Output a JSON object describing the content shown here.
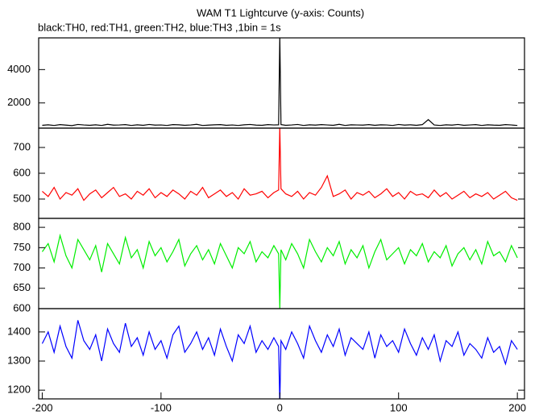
{
  "chart_data": [
    {
      "type": "line",
      "title": "WAM T1 Lightcurve (y-axis: Counts)",
      "subtitle": "black:TH0, red:TH1, green:TH2, blue:TH3 ,1bin = 1s",
      "x": [
        -200,
        -195,
        -190,
        -185,
        -180,
        -175,
        -170,
        -165,
        -160,
        -155,
        -150,
        -145,
        -140,
        -135,
        -130,
        -125,
        -120,
        -115,
        -110,
        -105,
        -100,
        -95,
        -90,
        -85,
        -80,
        -75,
        -70,
        -65,
        -60,
        -55,
        -50,
        -45,
        -40,
        -35,
        -30,
        -25,
        -20,
        -15,
        -10,
        -5,
        -1,
        0,
        1,
        5,
        10,
        15,
        20,
        25,
        30,
        35,
        40,
        45,
        50,
        55,
        60,
        65,
        70,
        75,
        80,
        85,
        90,
        95,
        100,
        105,
        110,
        115,
        120,
        125,
        130,
        135,
        140,
        145,
        150,
        155,
        160,
        165,
        170,
        175,
        180,
        185,
        190,
        195,
        200
      ],
      "series": [
        {
          "color": "#000000",
          "values": [
            660,
            690,
            650,
            700,
            670,
            640,
            710,
            680,
            660,
            690,
            650,
            720,
            670,
            680,
            700,
            650,
            690,
            660,
            710,
            670,
            680,
            650,
            700,
            690,
            660,
            680,
            720,
            650,
            670,
            690,
            700,
            660,
            680,
            650,
            690,
            710,
            670,
            660,
            700,
            680,
            690,
            6000,
            700,
            660,
            680,
            710,
            650,
            690,
            670,
            700,
            680,
            660,
            720,
            650,
            690,
            680,
            670,
            700,
            660,
            690,
            680,
            650,
            710,
            670,
            690,
            660,
            700,
            1000,
            680,
            650,
            690,
            670,
            710,
            660,
            680,
            700,
            650,
            690,
            670,
            660,
            700,
            680,
            650
          ]
        }
      ],
      "xlim": [
        -203,
        206
      ],
      "ylim": [
        490,
        5900
      ],
      "yticks": [
        2000,
        4000
      ]
    },
    {
      "type": "line",
      "x": [
        -200,
        -195,
        -190,
        -185,
        -180,
        -175,
        -170,
        -165,
        -160,
        -155,
        -150,
        -145,
        -140,
        -135,
        -130,
        -125,
        -120,
        -115,
        -110,
        -105,
        -100,
        -95,
        -90,
        -85,
        -80,
        -75,
        -70,
        -65,
        -60,
        -55,
        -50,
        -45,
        -40,
        -35,
        -30,
        -25,
        -20,
        -15,
        -10,
        -5,
        -1,
        0,
        1,
        5,
        10,
        15,
        20,
        25,
        30,
        35,
        40,
        45,
        50,
        55,
        60,
        65,
        70,
        75,
        80,
        85,
        90,
        95,
        100,
        105,
        110,
        115,
        120,
        125,
        130,
        135,
        140,
        145,
        150,
        155,
        160,
        165,
        170,
        175,
        180,
        185,
        190,
        195,
        200
      ],
      "series": [
        {
          "color": "#ff0000",
          "values": [
            530,
            510,
            545,
            500,
            525,
            515,
            540,
            495,
            520,
            535,
            505,
            525,
            545,
            510,
            520,
            500,
            530,
            515,
            540,
            505,
            525,
            510,
            535,
            520,
            500,
            530,
            515,
            545,
            505,
            520,
            535,
            510,
            525,
            500,
            540,
            515,
            520,
            530,
            505,
            525,
            535,
            780,
            540,
            520,
            510,
            530,
            500,
            525,
            515,
            545,
            590,
            510,
            520,
            535,
            500,
            525,
            515,
            530,
            505,
            520,
            540,
            510,
            525,
            500,
            530,
            515,
            520,
            505,
            535,
            510,
            525,
            500,
            515,
            530,
            505,
            520,
            510,
            525,
            500,
            515,
            530,
            505,
            495
          ]
        }
      ],
      "xlim": [
        -203,
        206
      ],
      "ylim": [
        425,
        775
      ],
      "yticks": [
        500,
        600,
        700
      ]
    },
    {
      "type": "line",
      "x": [
        -200,
        -195,
        -190,
        -185,
        -180,
        -175,
        -170,
        -165,
        -160,
        -155,
        -150,
        -145,
        -140,
        -135,
        -130,
        -125,
        -120,
        -115,
        -110,
        -105,
        -100,
        -95,
        -90,
        -85,
        -80,
        -75,
        -70,
        -65,
        -60,
        -55,
        -50,
        -45,
        -40,
        -35,
        -30,
        -25,
        -20,
        -15,
        -10,
        -5,
        -1,
        0,
        1,
        5,
        10,
        15,
        20,
        25,
        30,
        35,
        40,
        45,
        50,
        55,
        60,
        65,
        70,
        75,
        80,
        85,
        90,
        95,
        100,
        105,
        110,
        115,
        120,
        125,
        130,
        135,
        140,
        145,
        150,
        155,
        160,
        165,
        170,
        175,
        180,
        185,
        190,
        195,
        200
      ],
      "series": [
        {
          "color": "#00ee00",
          "values": [
            740,
            760,
            715,
            780,
            730,
            700,
            770,
            745,
            720,
            755,
            690,
            760,
            735,
            710,
            775,
            725,
            745,
            700,
            765,
            730,
            750,
            715,
            740,
            770,
            705,
            735,
            755,
            720,
            745,
            710,
            760,
            730,
            700,
            750,
            735,
            765,
            715,
            740,
            725,
            755,
            735,
            600,
            745,
            720,
            760,
            735,
            700,
            770,
            740,
            715,
            750,
            730,
            765,
            710,
            745,
            725,
            755,
            700,
            740,
            770,
            720,
            735,
            750,
            710,
            745,
            730,
            760,
            715,
            740,
            725,
            755,
            705,
            735,
            750,
            720,
            745,
            710,
            765,
            730,
            740,
            715,
            755,
            725
          ]
        }
      ],
      "xlim": [
        -203,
        206
      ],
      "ylim": [
        600,
        822
      ],
      "yticks": [
        600,
        650,
        700,
        750,
        800
      ]
    },
    {
      "type": "line",
      "x": [
        -200,
        -195,
        -190,
        -185,
        -180,
        -175,
        -170,
        -165,
        -160,
        -155,
        -150,
        -145,
        -140,
        -135,
        -130,
        -125,
        -120,
        -115,
        -110,
        -105,
        -100,
        -95,
        -90,
        -85,
        -80,
        -75,
        -70,
        -65,
        -60,
        -55,
        -50,
        -45,
        -40,
        -35,
        -30,
        -25,
        -20,
        -15,
        -10,
        -5,
        -1,
        0,
        1,
        5,
        10,
        15,
        20,
        25,
        30,
        35,
        40,
        45,
        50,
        55,
        60,
        65,
        70,
        75,
        80,
        85,
        90,
        95,
        100,
        105,
        110,
        115,
        120,
        125,
        130,
        135,
        140,
        145,
        150,
        155,
        160,
        165,
        170,
        175,
        180,
        185,
        190,
        195,
        200
      ],
      "series": [
        {
          "color": "#0000ff",
          "values": [
            1360,
            1400,
            1330,
            1420,
            1350,
            1310,
            1440,
            1370,
            1340,
            1390,
            1300,
            1410,
            1360,
            1330,
            1430,
            1350,
            1380,
            1320,
            1400,
            1340,
            1370,
            1310,
            1390,
            1420,
            1330,
            1360,
            1400,
            1340,
            1380,
            1320,
            1410,
            1350,
            1300,
            1390,
            1360,
            1420,
            1330,
            1370,
            1340,
            1380,
            1350,
            1150,
            1370,
            1340,
            1400,
            1360,
            1310,
            1420,
            1370,
            1330,
            1390,
            1350,
            1410,
            1320,
            1380,
            1360,
            1340,
            1400,
            1310,
            1390,
            1350,
            1370,
            1330,
            1410,
            1360,
            1320,
            1380,
            1340,
            1390,
            1300,
            1370,
            1350,
            1400,
            1320,
            1360,
            1340,
            1310,
            1380,
            1330,
            1350,
            1290,
            1370,
            1340
          ]
        }
      ],
      "xlim": [
        -203,
        206
      ],
      "ylim": [
        1170,
        1480
      ],
      "yticks": [
        1200,
        1300,
        1400
      ],
      "xticks": [
        -200,
        -100,
        0,
        100,
        200
      ]
    }
  ]
}
